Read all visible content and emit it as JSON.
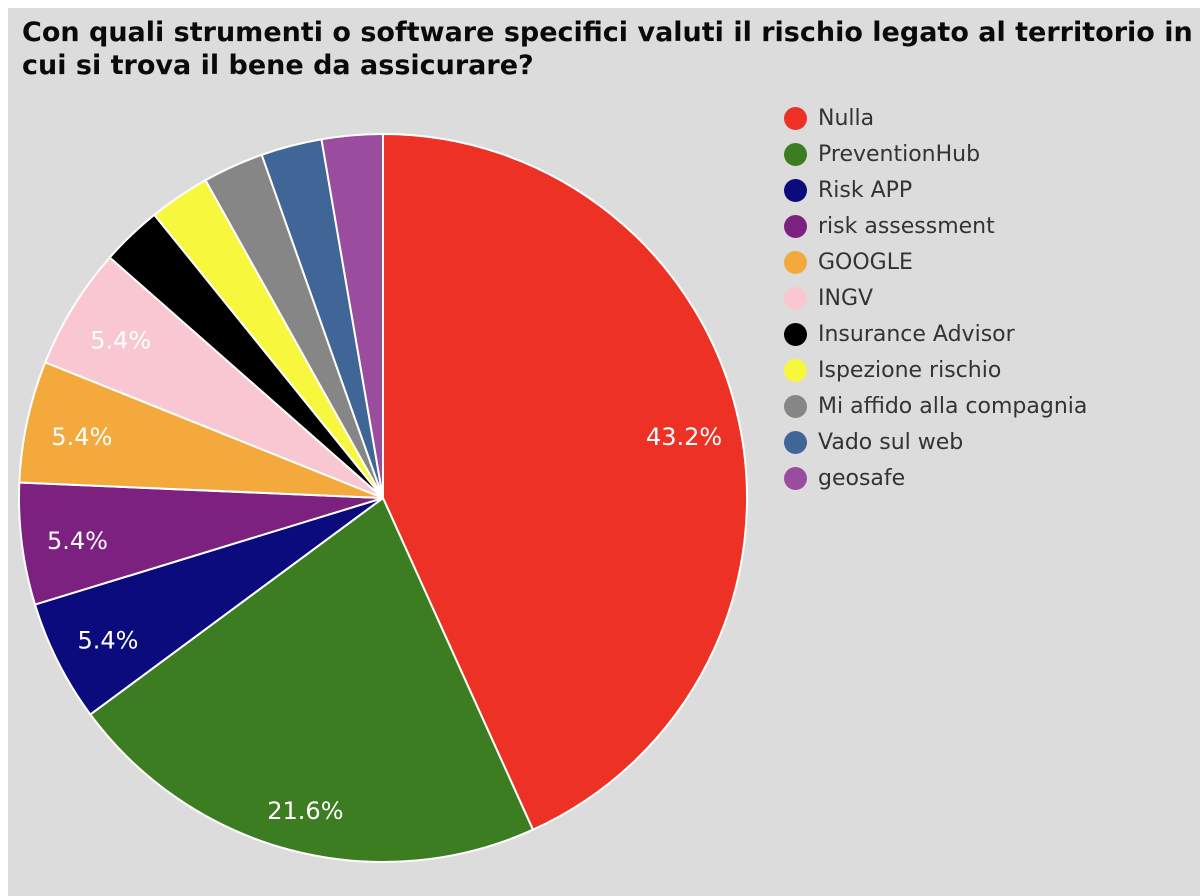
{
  "header": {
    "title": "Con quali strumenti o software specifici valuti il rischio legato al territorio in cui si trova il bene da assicurare?",
    "title_lines": [
      "Con quali strumenti o software specifici valuti il rischio legato al territorio in",
      "cui si trova il bene da assicurare?"
    ]
  },
  "chart_data": {
    "type": "pie",
    "title": "Con quali strumenti o software specifici valuti il rischio legato al territorio in cui si trova il bene da assicurare?",
    "legend_position": "right",
    "series": [
      {
        "name": "Nulla",
        "value": 43.2,
        "label": "43.2%",
        "color": "#ed3124"
      },
      {
        "name": "PreventionHub",
        "value": 21.6,
        "label": "21.6%",
        "color": "#3c7d22"
      },
      {
        "name": "Risk APP",
        "value": 5.4,
        "label": "5.4%",
        "color": "#0b0b7d"
      },
      {
        "name": "risk assessment",
        "value": 5.4,
        "label": "5.4%",
        "color": "#7d2180"
      },
      {
        "name": "GOOGLE",
        "value": 5.4,
        "label": "5.4%",
        "color": "#f4a93c"
      },
      {
        "name": "INGV",
        "value": 5.4,
        "label": "5.4%",
        "color": "#f8c7d2"
      },
      {
        "name": "Insurance Advisor",
        "value": 2.7,
        "label": "",
        "color": "#000000"
      },
      {
        "name": "Ispezione rischio",
        "value": 2.7,
        "label": "",
        "color": "#f7f73d"
      },
      {
        "name": "Mi affido alla compagnia",
        "value": 2.7,
        "label": "",
        "color": "#868686"
      },
      {
        "name": "Vado sul web",
        "value": 2.7,
        "label": "",
        "color": "#406597"
      },
      {
        "name": "geosafe",
        "value": 2.7,
        "label": "",
        "color": "#9a4d9e"
      }
    ]
  }
}
